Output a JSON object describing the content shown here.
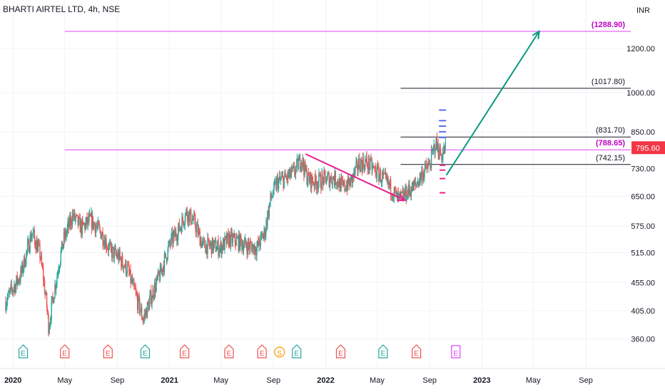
{
  "header": {
    "title": "BHARTI AIRTEL LTD, 4h, NSE",
    "currency": "INR"
  },
  "colors": {
    "up": "#26a69a",
    "down": "#ef5350",
    "magenta": "#e040fb",
    "pink": "#e91e8c",
    "teal_arrow": "#089981",
    "price_badge": "#f23645",
    "level_line": "#131722",
    "grid": "#f0f3fa",
    "axis_text": "#131722"
  },
  "chart_data": {
    "type": "candlestick",
    "title": "BHARTI AIRTEL LTD, 4h, NSE",
    "ylabel": "INR",
    "y_scale": "log",
    "ylim": [
      335,
      1400
    ],
    "xlim": [
      "2019-12-15",
      "2023-11-30"
    ],
    "y_ticks": [
      360,
      405,
      455,
      515,
      575,
      650,
      730,
      850,
      1000,
      1200
    ],
    "y_tick_labels": [
      "360.00",
      "405.00",
      "455.00",
      "515.00",
      "575.00",
      "650.00",
      "730.00",
      "850.00",
      "1000.00",
      "1200.00"
    ],
    "x_ticks": [
      {
        "date": "2020-01-01",
        "label": "2020",
        "bold": true
      },
      {
        "date": "2020-05-01",
        "label": "May",
        "bold": false
      },
      {
        "date": "2020-09-01",
        "label": "Sep",
        "bold": false
      },
      {
        "date": "2021-01-01",
        "label": "2021",
        "bold": true
      },
      {
        "date": "2021-05-01",
        "label": "May",
        "bold": false
      },
      {
        "date": "2021-09-01",
        "label": "Sep",
        "bold": false
      },
      {
        "date": "2022-01-01",
        "label": "2022",
        "bold": true
      },
      {
        "date": "2022-05-01",
        "label": "May",
        "bold": false
      },
      {
        "date": "2022-09-01",
        "label": "Sep",
        "bold": false
      },
      {
        "date": "2023-01-01",
        "label": "2023",
        "bold": true
      },
      {
        "date": "2023-05-01",
        "label": "May",
        "bold": false
      },
      {
        "date": "2023-09-01",
        "label": "Sep",
        "bold": false
      }
    ],
    "price_path": [
      [
        "2019-12-15",
        420
      ],
      [
        "2020-01-20",
        470
      ],
      [
        "2020-02-15",
        560
      ],
      [
        "2020-03-05",
        510
      ],
      [
        "2020-03-25",
        380
      ],
      [
        "2020-04-10",
        455
      ],
      [
        "2020-04-28",
        540
      ],
      [
        "2020-05-20",
        600
      ],
      [
        "2020-06-10",
        570
      ],
      [
        "2020-07-01",
        590
      ],
      [
        "2020-07-25",
        560
      ],
      [
        "2020-08-15",
        520
      ],
      [
        "2020-09-05",
        505
      ],
      [
        "2020-09-25",
        480
      ],
      [
        "2020-10-15",
        430
      ],
      [
        "2020-11-01",
        390
      ],
      [
        "2020-11-20",
        430
      ],
      [
        "2020-12-10",
        470
      ],
      [
        "2021-01-05",
        540
      ],
      [
        "2021-01-25",
        570
      ],
      [
        "2021-02-10",
        610
      ],
      [
        "2021-02-28",
        585
      ],
      [
        "2021-03-20",
        530
      ],
      [
        "2021-04-10",
        530
      ],
      [
        "2021-04-30",
        525
      ],
      [
        "2021-05-20",
        545
      ],
      [
        "2021-06-10",
        540
      ],
      [
        "2021-07-01",
        530
      ],
      [
        "2021-07-25",
        525
      ],
      [
        "2021-08-12",
        560
      ],
      [
        "2021-08-25",
        640
      ],
      [
        "2021-09-10",
        690
      ],
      [
        "2021-10-01",
        700
      ],
      [
        "2021-10-20",
        720
      ],
      [
        "2021-11-05",
        760
      ],
      [
        "2021-11-20",
        700
      ],
      [
        "2021-12-10",
        690
      ],
      [
        "2022-01-01",
        700
      ],
      [
        "2022-01-25",
        700
      ],
      [
        "2022-02-10",
        675
      ],
      [
        "2022-03-01",
        690
      ],
      [
        "2022-03-20",
        745
      ],
      [
        "2022-04-05",
        750
      ],
      [
        "2022-04-25",
        725
      ],
      [
        "2022-05-15",
        700
      ],
      [
        "2022-06-05",
        670
      ],
      [
        "2022-06-20",
        640
      ],
      [
        "2022-07-10",
        660
      ],
      [
        "2022-07-30",
        680
      ],
      [
        "2022-08-15",
        715
      ],
      [
        "2022-09-01",
        740
      ],
      [
        "2022-09-15",
        810
      ],
      [
        "2022-09-28",
        770
      ],
      [
        "2022-10-10",
        795
      ]
    ],
    "horizontal_levels": [
      {
        "price": 1288.9,
        "label": "(1288.90)",
        "color": "magenta",
        "start": "2020-05-01"
      },
      {
        "price": 1017.8,
        "label": "(1017.80)",
        "color": "black",
        "start": "2022-06-25"
      },
      {
        "price": 831.7,
        "label": "(831.70)",
        "color": "black",
        "start": "2022-06-25"
      },
      {
        "price": 788.65,
        "label": "(788.65)",
        "color": "magenta",
        "start": "2020-05-01"
      },
      {
        "price": 742.15,
        "label": "(742.15)",
        "color": "black",
        "start": "2022-06-25"
      }
    ],
    "last_price": {
      "price": 795.6,
      "label": "795.60"
    },
    "trend_arrows": [
      {
        "from": [
          "2021-11-15",
          775
        ],
        "to": [
          "2022-07-05",
          640
        ],
        "color": "pink"
      },
      {
        "from": [
          "2022-10-10",
          710
        ],
        "to": [
          "2023-05-15",
          1288.9
        ],
        "color": "teal"
      }
    ],
    "events": [
      {
        "date": "2020-01-25",
        "letter": "E",
        "kind": "earnings-up"
      },
      {
        "date": "2020-05-01",
        "letter": "E",
        "kind": "earnings-down"
      },
      {
        "date": "2020-08-10",
        "letter": "E",
        "kind": "earnings-down"
      },
      {
        "date": "2020-11-05",
        "letter": "E",
        "kind": "earnings-up"
      },
      {
        "date": "2021-02-05",
        "letter": "E",
        "kind": "earnings-down"
      },
      {
        "date": "2021-05-20",
        "letter": "E",
        "kind": "earnings-down"
      },
      {
        "date": "2021-08-05",
        "letter": "E",
        "kind": "earnings-down"
      },
      {
        "date": "2021-09-15",
        "letter": "S",
        "kind": "split"
      },
      {
        "date": "2021-10-25",
        "letter": "E",
        "kind": "earnings-up"
      },
      {
        "date": "2022-02-05",
        "letter": "E",
        "kind": "earnings-down"
      },
      {
        "date": "2022-05-15",
        "letter": "E",
        "kind": "earnings-up"
      },
      {
        "date": "2022-08-01",
        "letter": "E",
        "kind": "earnings-down"
      },
      {
        "date": "2022-11-01",
        "letter": "E",
        "kind": "earnings-upcoming"
      }
    ]
  }
}
